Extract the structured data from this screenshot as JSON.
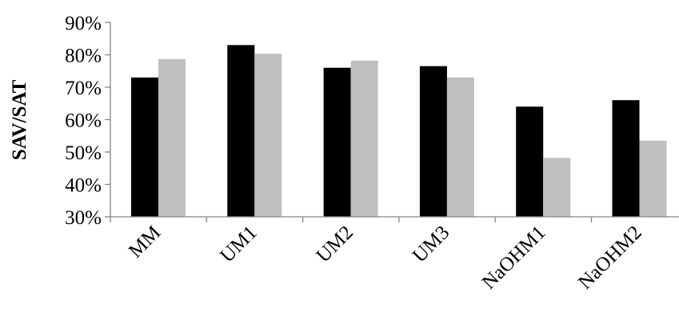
{
  "chart_data": {
    "type": "bar",
    "title": "",
    "xlabel": "",
    "ylabel": "SAV/SAT",
    "ylim": [
      0.3,
      0.9
    ],
    "y_ticks": [
      "30%",
      "40%",
      "50%",
      "60%",
      "70%",
      "80%",
      "90%"
    ],
    "grid": false,
    "categories": [
      "MM",
      "UM1",
      "UM2",
      "UM3",
      "NaOHM1",
      "NaOHM2"
    ],
    "series": [
      {
        "color": "#000000",
        "values": [
          0.73,
          0.83,
          0.76,
          0.765,
          0.64,
          0.66
        ]
      },
      {
        "color": "#bfbfbf",
        "values": [
          0.787,
          0.803,
          0.782,
          0.73,
          0.482,
          0.535
        ]
      }
    ]
  }
}
